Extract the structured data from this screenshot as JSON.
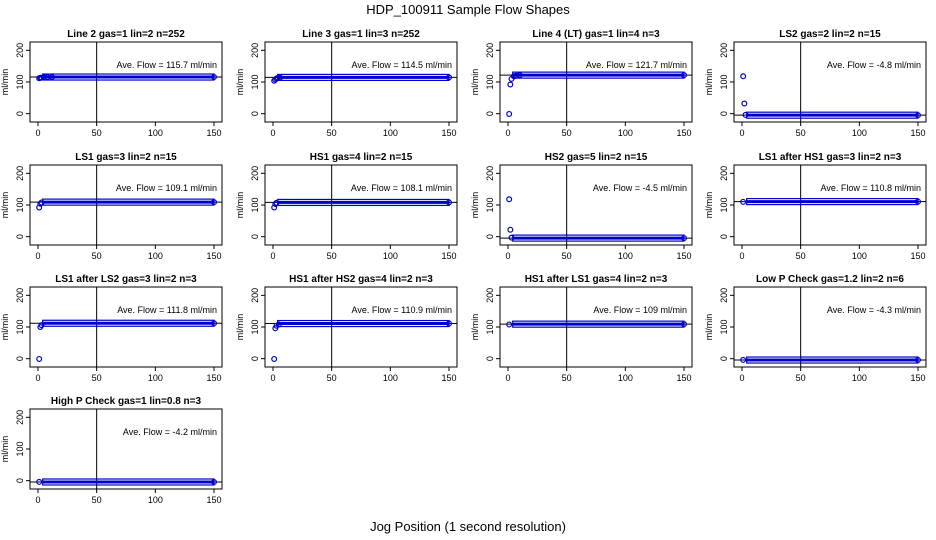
{
  "figure": {
    "title": "HDP_100911  Sample Flow Shapes",
    "xlabel": "Jog Position (1 second resolution)"
  },
  "chart_data": [
    {
      "type": "scatter",
      "title": "Line 2 gas=1 lin=2 n=252",
      "ylabel": "ml/min",
      "annotation": "Ave. Flow =  115.7  ml/min",
      "xlim": [
        0,
        150
      ],
      "ylim": [
        -20,
        220
      ],
      "xticks": [
        0,
        50,
        100,
        150
      ],
      "yticks": [
        0,
        100,
        200
      ],
      "vline": 50,
      "hline": 115.7,
      "points": [
        [
          1,
          112
        ],
        [
          2,
          113
        ],
        [
          3,
          114
        ],
        [
          5,
          115
        ],
        [
          8,
          115.5
        ],
        [
          12,
          115.7
        ],
        [
          150,
          115.7
        ]
      ],
      "band": [
        0,
        150,
        115.7
      ]
    },
    {
      "type": "scatter",
      "title": "Line 3 gas=1 lin=3 n=252",
      "ylabel": "ml/min",
      "annotation": "Ave. Flow =  114.5  ml/min",
      "xlim": [
        0,
        150
      ],
      "ylim": [
        -20,
        220
      ],
      "xticks": [
        0,
        50,
        100,
        150
      ],
      "yticks": [
        0,
        100,
        200
      ],
      "vline": 50,
      "hline": 114.5,
      "points": [
        [
          1,
          104
        ],
        [
          2,
          108
        ],
        [
          3,
          111
        ],
        [
          4,
          113
        ],
        [
          6,
          114
        ],
        [
          150,
          114.5
        ]
      ],
      "band": [
        0,
        150,
        114.5
      ]
    },
    {
      "type": "scatter",
      "title": "Line 4 (LT) gas=1 lin=4 n=3",
      "ylabel": "ml/min",
      "annotation": "Ave. Flow =  121.7  ml/min",
      "xlim": [
        0,
        150
      ],
      "ylim": [
        -20,
        220
      ],
      "xticks": [
        0,
        50,
        100,
        150
      ],
      "yticks": [
        0,
        100,
        200
      ],
      "vline": 50,
      "hline": 121.7,
      "points": [
        [
          1,
          -1
        ],
        [
          2,
          92
        ],
        [
          3,
          110
        ],
        [
          5,
          118
        ],
        [
          7,
          120
        ],
        [
          10,
          121.7
        ],
        [
          150,
          121.7
        ]
      ],
      "band": [
        0,
        150,
        121.7
      ]
    },
    {
      "type": "scatter",
      "title": "LS2 gas=2 lin=2 n=15",
      "ylabel": "ml/min",
      "annotation": "Ave. Flow =  -4.8  ml/min",
      "xlim": [
        0,
        150
      ],
      "ylim": [
        -20,
        220
      ],
      "xticks": [
        0,
        50,
        100,
        150
      ],
      "yticks": [
        0,
        100,
        200
      ],
      "vline": 50,
      "hline": -4.8,
      "points": [
        [
          1,
          118
        ],
        [
          2,
          32
        ],
        [
          3,
          -4
        ],
        [
          150,
          -4.8
        ]
      ],
      "band": [
        0,
        150,
        -4.8
      ]
    },
    {
      "type": "scatter",
      "title": "LS1 gas=3 lin=2 n=15",
      "ylabel": "ml/min",
      "annotation": "Ave. Flow =  109.1  ml/min",
      "xlim": [
        0,
        150
      ],
      "ylim": [
        -20,
        220
      ],
      "xticks": [
        0,
        50,
        100,
        150
      ],
      "yticks": [
        0,
        100,
        200
      ],
      "vline": 50,
      "hline": 109.1,
      "points": [
        [
          1,
          92
        ],
        [
          2,
          104
        ],
        [
          3,
          108
        ],
        [
          150,
          109.1
        ]
      ],
      "band": [
        0,
        150,
        109.1
      ]
    },
    {
      "type": "scatter",
      "title": "HS1 gas=4 lin=2 n=15",
      "ylabel": "ml/min",
      "annotation": "Ave. Flow =  108.1  ml/min",
      "xlim": [
        0,
        150
      ],
      "ylim": [
        -20,
        220
      ],
      "xticks": [
        0,
        50,
        100,
        150
      ],
      "yticks": [
        0,
        100,
        200
      ],
      "vline": 50,
      "hline": 108.1,
      "points": [
        [
          1,
          92
        ],
        [
          2,
          103
        ],
        [
          3,
          107
        ],
        [
          150,
          108.1
        ]
      ],
      "band": [
        0,
        150,
        108.1
      ]
    },
    {
      "type": "scatter",
      "title": "HS2 gas=5 lin=2 n=15",
      "ylabel": "ml/min",
      "annotation": "Ave. Flow =  -4.5  ml/min",
      "xlim": [
        0,
        150
      ],
      "ylim": [
        -20,
        220
      ],
      "xticks": [
        0,
        50,
        100,
        150
      ],
      "yticks": [
        0,
        100,
        200
      ],
      "vline": 50,
      "hline": -4.5,
      "points": [
        [
          1,
          118
        ],
        [
          2,
          22
        ],
        [
          3,
          -3
        ],
        [
          150,
          -4.5
        ]
      ],
      "band": [
        0,
        150,
        -4.5
      ]
    },
    {
      "type": "scatter",
      "title": "LS1 after HS1 gas=3 lin=2 n=3",
      "ylabel": "ml/min",
      "annotation": "Ave. Flow =  110.8  ml/min",
      "xlim": [
        0,
        150
      ],
      "ylim": [
        -20,
        220
      ],
      "xticks": [
        0,
        50,
        100,
        150
      ],
      "yticks": [
        0,
        100,
        200
      ],
      "vline": 50,
      "hline": 110.8,
      "points": [
        [
          1,
          110
        ],
        [
          150,
          110.8
        ]
      ],
      "band": [
        0,
        150,
        110.8
      ]
    },
    {
      "type": "scatter",
      "title": "LS1 after LS2 gas=3 lin=2 n=3",
      "ylabel": "ml/min",
      "annotation": "Ave. Flow =  111.8  ml/min",
      "xlim": [
        0,
        150
      ],
      "ylim": [
        -20,
        220
      ],
      "xticks": [
        0,
        50,
        100,
        150
      ],
      "yticks": [
        0,
        100,
        200
      ],
      "vline": 50,
      "hline": 111.8,
      "points": [
        [
          1,
          -1
        ],
        [
          2,
          100
        ],
        [
          3,
          106
        ],
        [
          150,
          111.8
        ]
      ],
      "band": [
        0,
        150,
        111.8
      ]
    },
    {
      "type": "scatter",
      "title": "HS1 after HS2 gas=4 lin=2 n=3",
      "ylabel": "ml/min",
      "annotation": "Ave. Flow =  110.9  ml/min",
      "xlim": [
        0,
        150
      ],
      "ylim": [
        -20,
        220
      ],
      "xticks": [
        0,
        50,
        100,
        150
      ],
      "yticks": [
        0,
        100,
        200
      ],
      "vline": 50,
      "hline": 110.9,
      "points": [
        [
          1,
          -1
        ],
        [
          2,
          96
        ],
        [
          3,
          104
        ],
        [
          5,
          108
        ],
        [
          150,
          110.9
        ]
      ],
      "band": [
        0,
        150,
        110.9
      ]
    },
    {
      "type": "scatter",
      "title": "HS1 after LS1 gas=4 lin=2 n=3",
      "ylabel": "ml/min",
      "annotation": "Ave. Flow =  109  ml/min",
      "xlim": [
        0,
        150
      ],
      "ylim": [
        -20,
        220
      ],
      "xticks": [
        0,
        50,
        100,
        150
      ],
      "yticks": [
        0,
        100,
        200
      ],
      "vline": 50,
      "hline": 109,
      "points": [
        [
          1,
          108
        ],
        [
          150,
          109
        ]
      ],
      "band": [
        0,
        150,
        109
      ]
    },
    {
      "type": "scatter",
      "title": "Low P Check gas=1.2 lin=2 n=6",
      "ylabel": "ml/min",
      "annotation": "Ave. Flow =  -4.3  ml/min",
      "xlim": [
        0,
        150
      ],
      "ylim": [
        -20,
        220
      ],
      "xticks": [
        0,
        50,
        100,
        150
      ],
      "yticks": [
        0,
        100,
        200
      ],
      "vline": 50,
      "hline": -4.3,
      "points": [
        [
          1,
          -4
        ],
        [
          150,
          -4.3
        ]
      ],
      "band": [
        0,
        150,
        -4.3
      ]
    },
    {
      "type": "scatter",
      "title": "High P Check gas=1 lin=0.8 n=3",
      "ylabel": "ml/min",
      "annotation": "Ave. Flow =  -4.2  ml/min",
      "xlim": [
        0,
        150
      ],
      "ylim": [
        -20,
        220
      ],
      "xticks": [
        0,
        50,
        100,
        150
      ],
      "yticks": [
        0,
        100,
        200
      ],
      "vline": 50,
      "hline": -4.2,
      "points": [
        [
          1,
          -4
        ],
        [
          150,
          -4.2
        ]
      ],
      "band": [
        0,
        150,
        -4.2
      ]
    }
  ],
  "style": {
    "point_color": "#0000cc",
    "line_color": "#000000"
  }
}
